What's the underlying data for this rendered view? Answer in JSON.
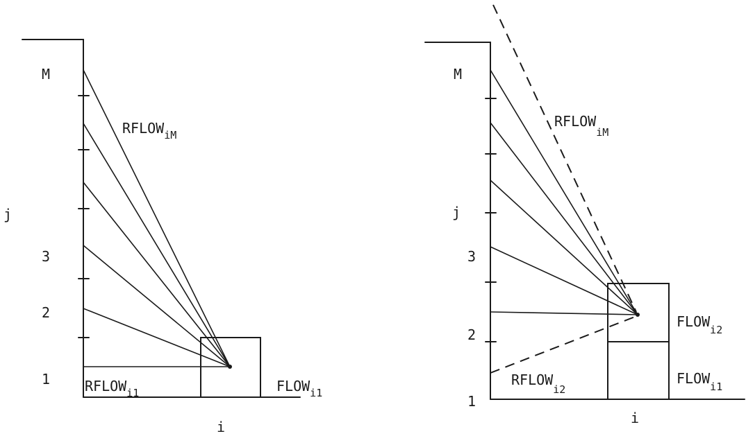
{
  "left_panel": {
    "y_axis_label": "j",
    "x_axis_label": "i",
    "tick_labels": {
      "m": "M",
      "three": "3",
      "two": "2",
      "one": "1"
    },
    "rflow_top": {
      "main": "RFLOW",
      "sub": "iM"
    },
    "rflow_bottom": {
      "main": "RFLOW",
      "sub": "i1"
    },
    "flow": {
      "main": "FLOW",
      "sub": "i1"
    }
  },
  "right_panel": {
    "y_axis_label": "j",
    "x_axis_label": "i",
    "tick_labels": {
      "m": "M",
      "three": "3",
      "two": "2",
      "one": "1"
    },
    "rflow_top": {
      "main": "RFLOW",
      "sub": "iM"
    },
    "rflow_bottom": {
      "main": "RFLOW",
      "sub": "i2"
    },
    "flow_upper": {
      "main": "FLOW",
      "sub": "i2"
    },
    "flow_lower": {
      "main": "FLOW",
      "sub": "i1"
    }
  }
}
